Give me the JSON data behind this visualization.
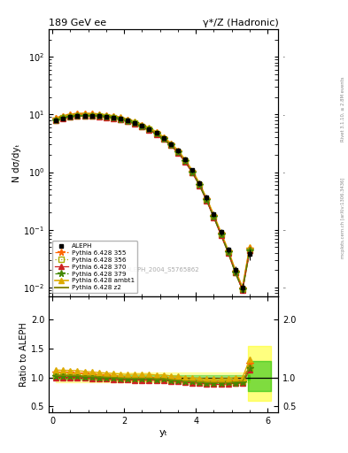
{
  "title_left": "189 GeV ee",
  "title_right": "γ*/Z (Hadronic)",
  "ylabel_main": "N dσ/dyₜ",
  "ylabel_ratio": "Ratio to ALEPH",
  "xlabel": "yₜ",
  "right_label_top": "Rivet 3.1.10, ≥ 2.8M events",
  "right_label_bottom": "mcplots.cern.ch [arXiv:1306.3436]",
  "watermark": "ALEPH_2004_S5765862",
  "ylim_main": [
    0.007,
    300
  ],
  "ylim_ratio": [
    0.4,
    2.4
  ],
  "xlim": [
    -0.1,
    6.3
  ],
  "data_x": [
    0.1,
    0.3,
    0.5,
    0.7,
    0.9,
    1.1,
    1.3,
    1.5,
    1.7,
    1.9,
    2.1,
    2.3,
    2.5,
    2.7,
    2.9,
    3.1,
    3.3,
    3.5,
    3.7,
    3.9,
    4.1,
    4.3,
    4.5,
    4.7,
    4.9,
    5.1,
    5.3,
    5.5
  ],
  "aleph_y": [
    7.8,
    8.5,
    9.0,
    9.3,
    9.5,
    9.5,
    9.4,
    9.2,
    8.9,
    8.5,
    7.9,
    7.2,
    6.4,
    5.6,
    4.8,
    3.9,
    3.1,
    2.35,
    1.65,
    1.08,
    0.65,
    0.36,
    0.185,
    0.092,
    0.045,
    0.02,
    0.01,
    0.038
  ],
  "aleph_yerr_lo": [
    0.4,
    0.3,
    0.3,
    0.3,
    0.3,
    0.3,
    0.3,
    0.3,
    0.3,
    0.3,
    0.3,
    0.3,
    0.3,
    0.3,
    0.3,
    0.2,
    0.2,
    0.2,
    0.15,
    0.1,
    0.07,
    0.04,
    0.02,
    0.012,
    0.006,
    0.003,
    0.002,
    0.008
  ],
  "aleph_yerr_hi": [
    0.4,
    0.3,
    0.3,
    0.3,
    0.3,
    0.3,
    0.3,
    0.3,
    0.3,
    0.3,
    0.3,
    0.3,
    0.3,
    0.3,
    0.3,
    0.2,
    0.2,
    0.2,
    0.15,
    0.1,
    0.07,
    0.04,
    0.02,
    0.012,
    0.006,
    0.003,
    0.002,
    0.008
  ],
  "pythia_355_y": [
    8.5,
    9.2,
    9.7,
    10.0,
    10.1,
    10.0,
    9.8,
    9.5,
    9.1,
    8.6,
    7.9,
    7.2,
    6.4,
    5.6,
    4.75,
    3.88,
    3.02,
    2.27,
    1.57,
    1.02,
    0.61,
    0.335,
    0.172,
    0.086,
    0.042,
    0.019,
    0.0095,
    0.047
  ],
  "pythia_356_y": [
    8.0,
    8.7,
    9.2,
    9.5,
    9.6,
    9.55,
    9.4,
    9.15,
    8.8,
    8.35,
    7.7,
    7.05,
    6.25,
    5.48,
    4.65,
    3.8,
    2.96,
    2.22,
    1.54,
    1.0,
    0.6,
    0.325,
    0.167,
    0.083,
    0.041,
    0.018,
    0.0091,
    0.044
  ],
  "pythia_370_y": [
    7.8,
    8.5,
    9.0,
    9.3,
    9.4,
    9.35,
    9.2,
    8.95,
    8.6,
    8.15,
    7.55,
    6.88,
    6.1,
    5.35,
    4.55,
    3.72,
    2.9,
    2.18,
    1.51,
    0.98,
    0.585,
    0.32,
    0.163,
    0.081,
    0.04,
    0.018,
    0.009,
    0.043
  ],
  "pythia_379_y": [
    8.0,
    8.7,
    9.2,
    9.5,
    9.6,
    9.55,
    9.4,
    9.15,
    8.8,
    8.35,
    7.7,
    7.05,
    6.25,
    5.48,
    4.65,
    3.8,
    2.96,
    2.22,
    1.54,
    1.0,
    0.6,
    0.325,
    0.167,
    0.083,
    0.041,
    0.018,
    0.0091,
    0.044
  ],
  "pythia_ambt1_y": [
    8.8,
    9.55,
    10.1,
    10.4,
    10.5,
    10.4,
    10.2,
    9.9,
    9.5,
    9.0,
    8.3,
    7.6,
    6.75,
    5.9,
    5.0,
    4.08,
    3.18,
    2.39,
    1.65,
    1.07,
    0.64,
    0.35,
    0.18,
    0.09,
    0.044,
    0.02,
    0.01,
    0.05
  ],
  "pythia_z2_y": [
    8.1,
    8.8,
    9.3,
    9.6,
    9.7,
    9.65,
    9.5,
    9.25,
    8.9,
    8.45,
    7.8,
    7.12,
    6.32,
    5.54,
    4.7,
    3.84,
    2.99,
    2.24,
    1.55,
    1.01,
    0.605,
    0.33,
    0.169,
    0.084,
    0.041,
    0.0185,
    0.0093,
    0.045
  ],
  "colors": {
    "aleph": "#000000",
    "pythia_355": "#ff6600",
    "pythia_356": "#aaaa00",
    "pythia_370": "#cc2222",
    "pythia_379": "#448800",
    "pythia_ambt1": "#ddaa00",
    "pythia_z2": "#888800"
  },
  "band_yellow": "#ffff00",
  "band_green": "#00bb00"
}
